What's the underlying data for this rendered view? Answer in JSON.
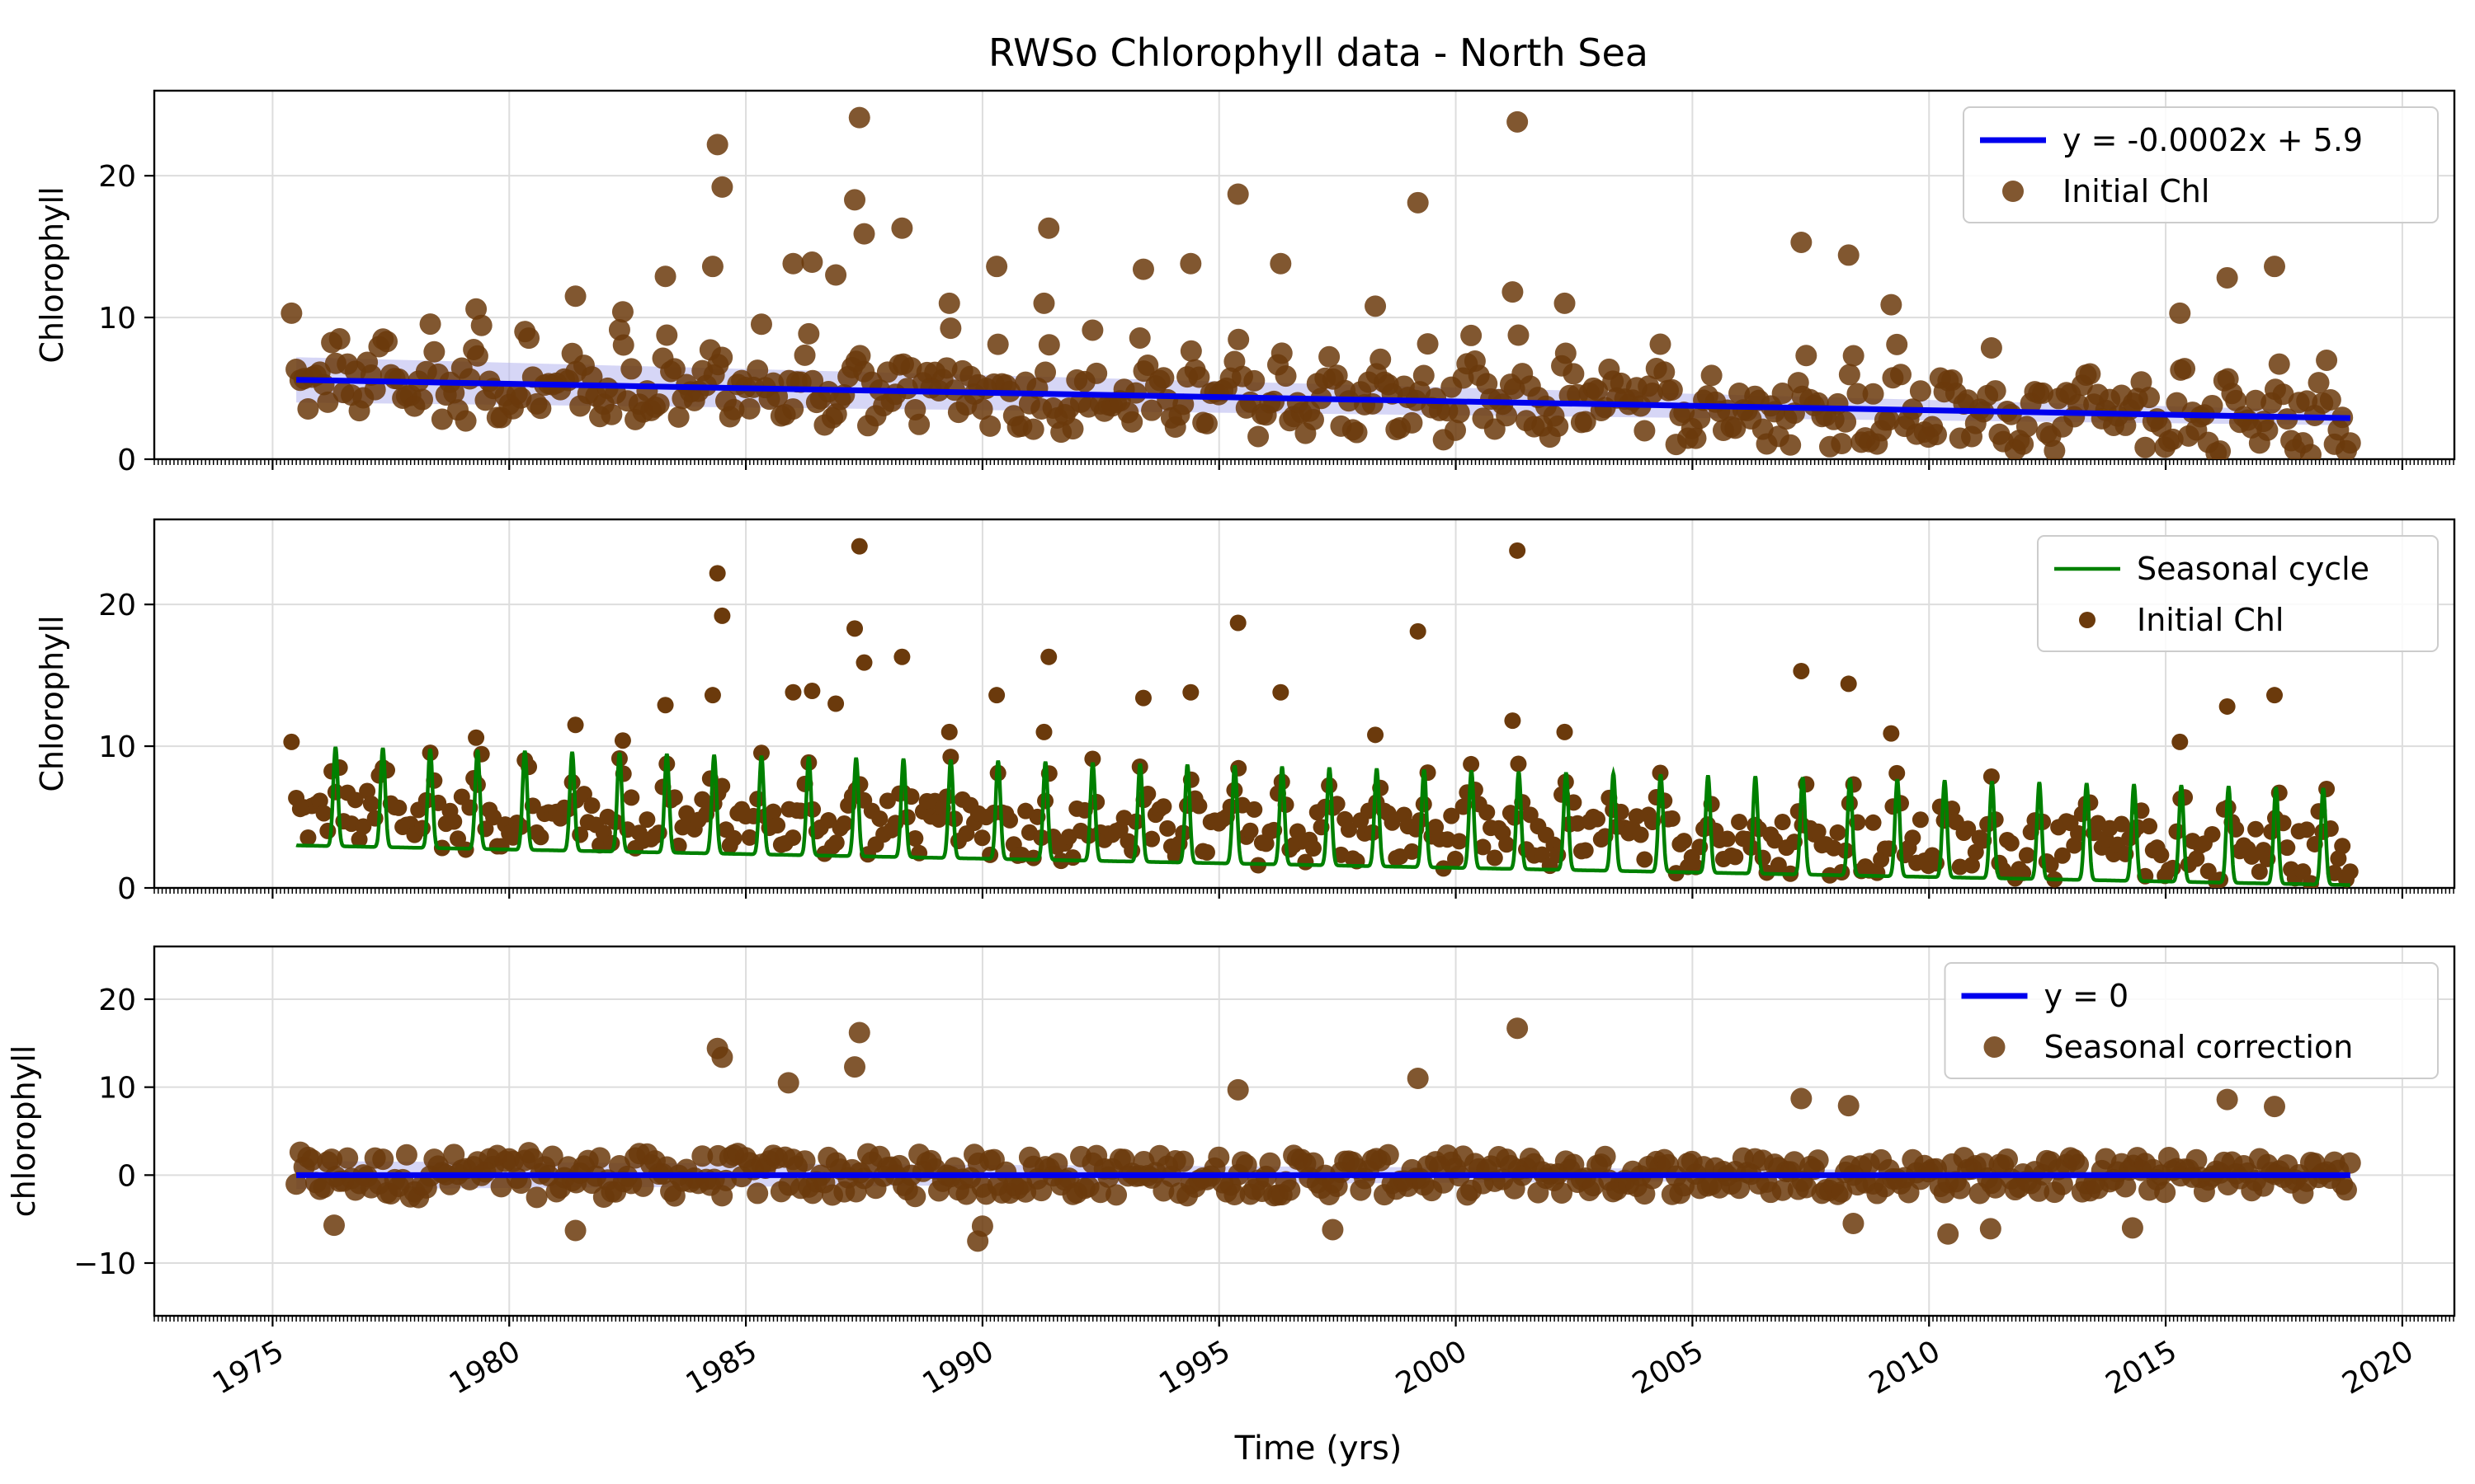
{
  "figure": {
    "title": "RWSo Chlorophyll data - North Sea",
    "xlabel": "Time (yrs)"
  },
  "colors": {
    "points": "#6b3a0c",
    "trend": "#0000ee",
    "seasonal": "#008000",
    "band": "#b4b4ee",
    "grid": "#dddddd"
  },
  "chart_data": [
    {
      "type": "scatter",
      "ylabel": "Chlorophyll",
      "xlim": [
        1972.5,
        2021.1
      ],
      "ylim": [
        0,
        26
      ],
      "yticks": [
        0,
        10,
        20
      ],
      "xticks": [
        1975,
        1980,
        1985,
        1990,
        1995,
        2000,
        2005,
        2010,
        2015,
        2020
      ],
      "grid": true,
      "legend_position": "top-right",
      "series": [
        {
          "name": "y = -0.0002x + 5.9",
          "kind": "trend_line",
          "x": [
            1975.5,
            2018.9
          ],
          "y": [
            5.6,
            2.9
          ],
          "band_halfwidth_start": 1.6,
          "band_halfwidth_end": 0.5
        },
        {
          "name": "Initial Chl",
          "kind": "points",
          "highlighted_points": [
            {
              "x": 1984.4,
              "y": 22.2
            },
            {
              "x": 1984.5,
              "y": 19.2
            },
            {
              "x": 1987.3,
              "y": 18.3
            },
            {
              "x": 1987.4,
              "y": 24.1
            },
            {
              "x": 1987.5,
              "y": 15.9
            },
            {
              "x": 1988.3,
              "y": 16.3
            },
            {
              "x": 1991.4,
              "y": 16.3
            },
            {
              "x": 1995.4,
              "y": 18.7
            },
            {
              "x": 1999.2,
              "y": 18.1
            },
            {
              "x": 2001.3,
              "y": 23.8
            },
            {
              "x": 2001.2,
              "y": 11.8
            },
            {
              "x": 2007.3,
              "y": 15.3
            },
            {
              "x": 2008.3,
              "y": 14.4
            },
            {
              "x": 2016.3,
              "y": 12.8
            },
            {
              "x": 2017.3,
              "y": 13.6
            },
            {
              "x": 1986.0,
              "y": 13.8
            },
            {
              "x": 1986.4,
              "y": 13.9
            },
            {
              "x": 1990.3,
              "y": 13.6
            },
            {
              "x": 1993.4,
              "y": 13.4
            },
            {
              "x": 1994.4,
              "y": 13.8
            },
            {
              "x": 1996.3,
              "y": 13.8
            },
            {
              "x": 1983.3,
              "y": 12.9
            },
            {
              "x": 1984.3,
              "y": 13.6
            },
            {
              "x": 1986.9,
              "y": 13.0
            },
            {
              "x": 1975.4,
              "y": 10.3
            },
            {
              "x": 1979.3,
              "y": 10.6
            },
            {
              "x": 1982.4,
              "y": 10.4
            },
            {
              "x": 2015.3,
              "y": 10.3
            },
            {
              "x": 2009.2,
              "y": 10.9
            },
            {
              "x": 2002.3,
              "y": 11.0
            },
            {
              "x": 1989.3,
              "y": 11.0
            },
            {
              "x": 1998.3,
              "y": 10.8
            },
            {
              "x": 1981.4,
              "y": 11.5
            },
            {
              "x": 1991.3,
              "y": 11.0
            }
          ]
        }
      ]
    },
    {
      "type": "line",
      "ylabel": "Chlorophyll",
      "xlim": [
        1972.5,
        2021.1
      ],
      "ylim": [
        0,
        26
      ],
      "yticks": [
        0,
        10,
        20
      ],
      "grid": true,
      "legend_position": "top-right",
      "series": [
        {
          "name": "Seasonal cycle",
          "kind": "seasonal_line",
          "x_range": [
            1975.5,
            2018.9
          ],
          "peak_start": 10.0,
          "peak_end": 7.0,
          "trough_start": 3.0,
          "trough_end": 0.2
        },
        {
          "name": "Initial Chl",
          "kind": "points"
        }
      ]
    },
    {
      "type": "scatter",
      "ylabel": "chlorophyll",
      "xlim": [
        1972.5,
        2021.1
      ],
      "ylim": [
        -16,
        26
      ],
      "yticks": [
        -10,
        0,
        10,
        20
      ],
      "grid": true,
      "legend_position": "top-right",
      "series": [
        {
          "name": "y = 0",
          "kind": "trend_line",
          "x": [
            1975.5,
            2018.9
          ],
          "y": [
            0,
            0
          ],
          "band_halfwidth_start": 1.6,
          "band_halfwidth_end": 0.3
        },
        {
          "name": "Seasonal correction",
          "kind": "points",
          "highlighted_points": [
            {
              "x": 1984.4,
              "y": 14.4
            },
            {
              "x": 1984.5,
              "y": 13.4
            },
            {
              "x": 1987.3,
              "y": 12.3
            },
            {
              "x": 1987.4,
              "y": 16.2
            },
            {
              "x": 2001.3,
              "y": 16.7
            },
            {
              "x": 1985.9,
              "y": 10.5
            },
            {
              "x": 1999.2,
              "y": 11.0
            },
            {
              "x": 1995.4,
              "y": 9.7
            },
            {
              "x": 2007.3,
              "y": 8.7
            },
            {
              "x": 2016.3,
              "y": 8.6
            },
            {
              "x": 2017.3,
              "y": 7.8
            },
            {
              "x": 2008.3,
              "y": 7.9
            },
            {
              "x": 1989.9,
              "y": -7.5
            },
            {
              "x": 1990.0,
              "y": -5.8
            },
            {
              "x": 2010.4,
              "y": -6.7
            },
            {
              "x": 2011.3,
              "y": -6.1
            },
            {
              "x": 2014.3,
              "y": -6.0
            },
            {
              "x": 1981.4,
              "y": -6.3
            },
            {
              "x": 1997.4,
              "y": -6.2
            },
            {
              "x": 2008.4,
              "y": -5.5
            },
            {
              "x": 1976.3,
              "y": -5.7
            }
          ]
        }
      ]
    }
  ]
}
